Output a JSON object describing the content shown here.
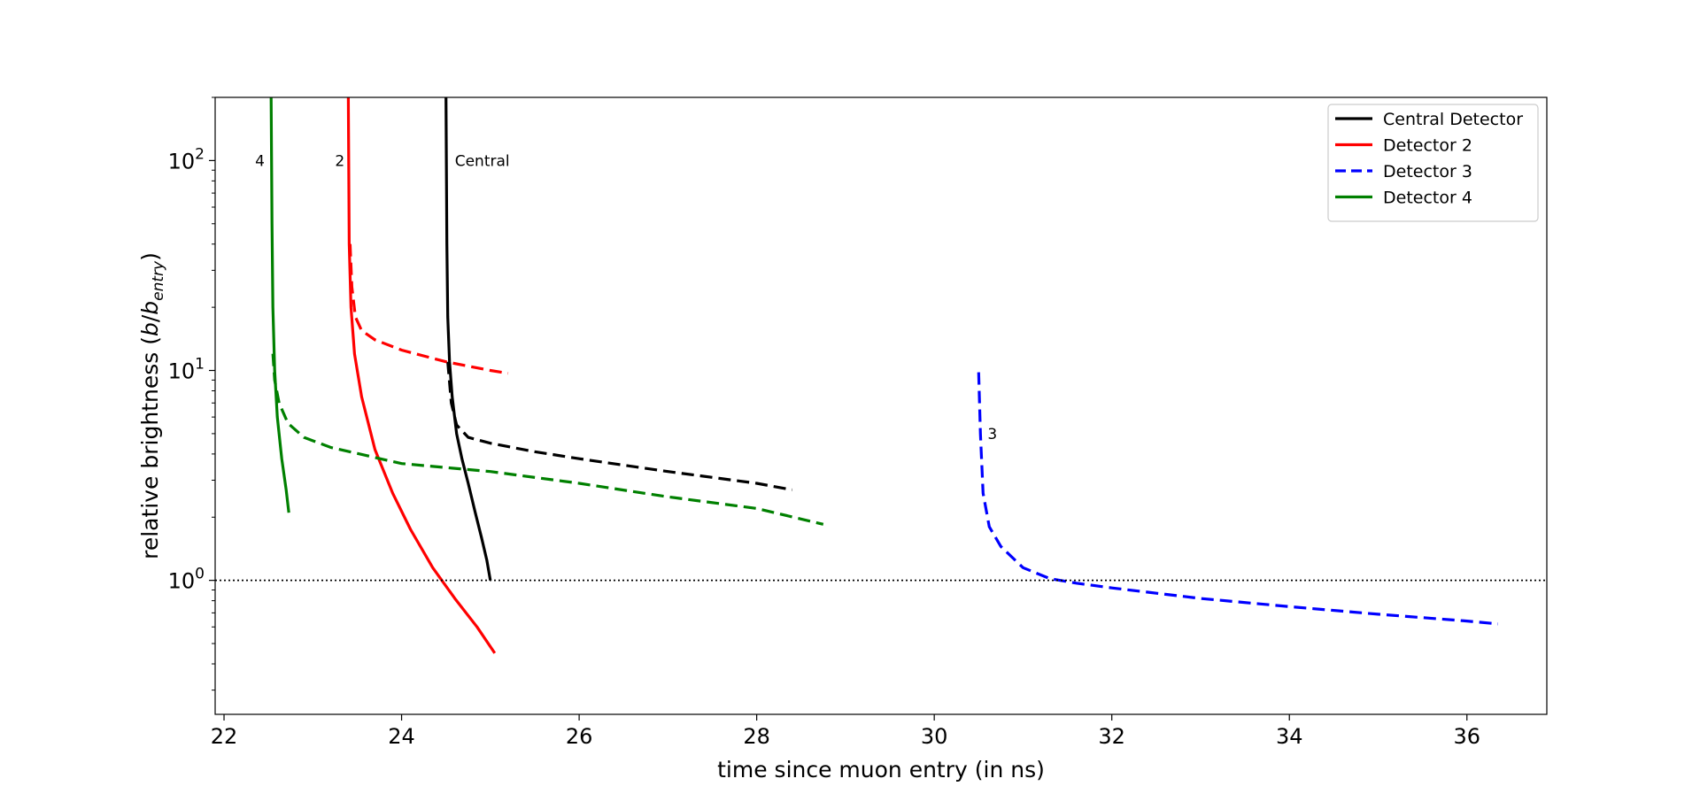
{
  "chart_data": {
    "type": "line",
    "title": "",
    "xlabel": "time since muon entry (in ns)",
    "ylabel": {
      "main": "relative brightness (",
      "var_b": "b",
      "slash": "/",
      "var_b2": "b",
      "sub": "entry",
      "close": ")"
    },
    "xlim": [
      21.9,
      36.9
    ],
    "ylim": [
      0.23,
      200
    ],
    "yscale": "log",
    "xticks": [
      {
        "value": 22,
        "label": "22"
      },
      {
        "value": 24,
        "label": "24"
      },
      {
        "value": 26,
        "label": "26"
      },
      {
        "value": 28,
        "label": "28"
      },
      {
        "value": 30,
        "label": "30"
      },
      {
        "value": 32,
        "label": "32"
      },
      {
        "value": 34,
        "label": "34"
      },
      {
        "value": 36,
        "label": "36"
      }
    ],
    "yticks": [
      {
        "value": 1,
        "base": "10",
        "exp": "0"
      },
      {
        "value": 10,
        "base": "10",
        "exp": "1"
      },
      {
        "value": 100,
        "base": "10",
        "exp": "2"
      }
    ],
    "reference_line": {
      "y": 1,
      "style": "dotted",
      "color": "#000000"
    },
    "legend_position": "top-right",
    "series": [
      {
        "name": "Central Detector",
        "color": "#000000",
        "legend_dash": "solid",
        "solid": [
          [
            24.5,
            200
          ],
          [
            24.51,
            40
          ],
          [
            24.52,
            18
          ],
          [
            24.54,
            11
          ],
          [
            24.57,
            7.5
          ],
          [
            24.62,
            5
          ],
          [
            24.68,
            3.8
          ],
          [
            24.75,
            2.9
          ],
          [
            24.83,
            2.1
          ],
          [
            24.9,
            1.6
          ],
          [
            24.96,
            1.25
          ],
          [
            25.0,
            1.0
          ]
        ],
        "dashed": [
          [
            24.52,
            11
          ],
          [
            24.56,
            7
          ],
          [
            24.62,
            5.5
          ],
          [
            24.75,
            4.8
          ],
          [
            25.0,
            4.5
          ],
          [
            25.5,
            4.1
          ],
          [
            26.0,
            3.8
          ],
          [
            27.0,
            3.3
          ],
          [
            28.0,
            2.9
          ],
          [
            28.4,
            2.7
          ]
        ]
      },
      {
        "name": "Detector 2",
        "color": "#ff0000",
        "legend_dash": "solid",
        "solid": [
          [
            23.4,
            200
          ],
          [
            23.41,
            40
          ],
          [
            23.43,
            20
          ],
          [
            23.47,
            12
          ],
          [
            23.55,
            7.5
          ],
          [
            23.7,
            4.2
          ],
          [
            23.9,
            2.6
          ],
          [
            24.1,
            1.75
          ],
          [
            24.35,
            1.15
          ],
          [
            24.6,
            0.82
          ],
          [
            24.85,
            0.6
          ],
          [
            25.05,
            0.45
          ]
        ],
        "dashed": [
          [
            23.42,
            40
          ],
          [
            23.44,
            25
          ],
          [
            23.48,
            18
          ],
          [
            23.55,
            15.5
          ],
          [
            23.7,
            14
          ],
          [
            24.0,
            12.5
          ],
          [
            24.5,
            11
          ],
          [
            25.0,
            10
          ],
          [
            25.2,
            9.7
          ]
        ]
      },
      {
        "name": "Detector 3",
        "color": "#0000ff",
        "legend_dash": "dashed",
        "solid": [],
        "dashed": [
          [
            30.5,
            9.8
          ],
          [
            30.52,
            5
          ],
          [
            30.55,
            2.6
          ],
          [
            30.62,
            1.8
          ],
          [
            30.75,
            1.45
          ],
          [
            31.0,
            1.15
          ],
          [
            31.3,
            1.02
          ],
          [
            31.6,
            0.97
          ],
          [
            32.0,
            0.92
          ],
          [
            33.0,
            0.82
          ],
          [
            34.0,
            0.75
          ],
          [
            35.0,
            0.69
          ],
          [
            36.0,
            0.64
          ],
          [
            36.35,
            0.62
          ]
        ]
      },
      {
        "name": "Detector 4",
        "color": "#008000",
        "legend_dash": "solid",
        "solid": [
          [
            22.53,
            200
          ],
          [
            22.54,
            50
          ],
          [
            22.55,
            20
          ],
          [
            22.57,
            10
          ],
          [
            22.6,
            6
          ],
          [
            22.65,
            3.8
          ],
          [
            22.7,
            2.7
          ],
          [
            22.73,
            2.1
          ]
        ],
        "dashed": [
          [
            22.55,
            12
          ],
          [
            22.57,
            9
          ],
          [
            22.62,
            7
          ],
          [
            22.72,
            5.6
          ],
          [
            22.9,
            4.8
          ],
          [
            23.2,
            4.3
          ],
          [
            24.0,
            3.6
          ],
          [
            25.0,
            3.3
          ],
          [
            26.0,
            2.9
          ],
          [
            27.0,
            2.5
          ],
          [
            28.0,
            2.2
          ],
          [
            28.75,
            1.85
          ]
        ]
      }
    ],
    "curve_labels": [
      {
        "text": "4",
        "x": 22.35,
        "y": 100
      },
      {
        "text": "2",
        "x": 23.25,
        "y": 100
      },
      {
        "text": "Central",
        "x": 24.6,
        "y": 100
      },
      {
        "text": "3",
        "x": 30.6,
        "y": 5
      }
    ]
  }
}
